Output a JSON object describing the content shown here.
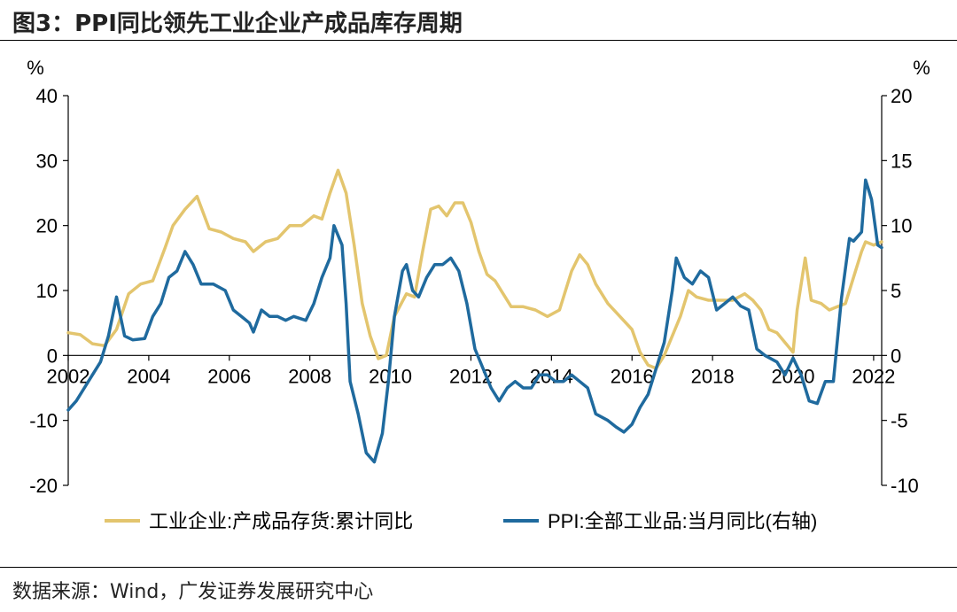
{
  "figure": {
    "title": "图3：PPI同比领先工业企业产成品库存周期",
    "source": "数据来源：Wind，广发证券发展研究中心"
  },
  "colors": {
    "left_series": "#e3c56e",
    "right_series": "#1f6a9e",
    "axis": "#000000"
  },
  "chart_data": {
    "type": "line",
    "title": "PPI同比领先工业企业产成品库存周期",
    "x_ticks": [
      "2002",
      "2004",
      "2006",
      "2008",
      "2010",
      "2012",
      "2014",
      "2016",
      "2018",
      "2020",
      "2022"
    ],
    "xlim": [
      2002.0,
      2022.2
    ],
    "left_axis": {
      "unit": "%",
      "ylim": [
        -20,
        40
      ],
      "ticks": [
        "-20",
        "-10",
        "0",
        "10",
        "20",
        "30",
        "40"
      ]
    },
    "right_axis": {
      "unit": "%",
      "ylim": [
        -10,
        20
      ],
      "ticks": [
        "-10",
        "-5",
        "0",
        "5",
        "10",
        "15",
        "20"
      ]
    },
    "series": [
      {
        "name": "工业企业:产成品存货:累计同比",
        "axis": "left",
        "color": "#e3c56e",
        "points": [
          [
            2002.0,
            3.5
          ],
          [
            2002.3,
            3.2
          ],
          [
            2002.6,
            1.8
          ],
          [
            2002.9,
            1.5
          ],
          [
            2003.2,
            4
          ],
          [
            2003.5,
            9.5
          ],
          [
            2003.8,
            11
          ],
          [
            2004.1,
            11.5
          ],
          [
            2004.4,
            16.5
          ],
          [
            2004.6,
            20
          ],
          [
            2004.9,
            22.5
          ],
          [
            2005.2,
            24.5
          ],
          [
            2005.5,
            19.5
          ],
          [
            2005.8,
            19
          ],
          [
            2006.1,
            18
          ],
          [
            2006.4,
            17.5
          ],
          [
            2006.6,
            16
          ],
          [
            2006.9,
            17.5
          ],
          [
            2007.2,
            18
          ],
          [
            2007.5,
            20
          ],
          [
            2007.8,
            20
          ],
          [
            2008.1,
            21.5
          ],
          [
            2008.3,
            21
          ],
          [
            2008.5,
            25
          ],
          [
            2008.7,
            28.5
          ],
          [
            2008.9,
            25
          ],
          [
            2009.1,
            17
          ],
          [
            2009.3,
            8
          ],
          [
            2009.5,
            3
          ],
          [
            2009.7,
            -0.5
          ],
          [
            2009.9,
            0
          ],
          [
            2010.1,
            6
          ],
          [
            2010.4,
            9.5
          ],
          [
            2010.6,
            9
          ],
          [
            2010.8,
            16
          ],
          [
            2011.0,
            22.5
          ],
          [
            2011.2,
            23
          ],
          [
            2011.4,
            21.5
          ],
          [
            2011.6,
            23.5
          ],
          [
            2011.8,
            23.5
          ],
          [
            2012.0,
            20.5
          ],
          [
            2012.2,
            16
          ],
          [
            2012.4,
            12.5
          ],
          [
            2012.6,
            11.5
          ],
          [
            2012.8,
            9.5
          ],
          [
            2013.0,
            7.5
          ],
          [
            2013.3,
            7.5
          ],
          [
            2013.6,
            7
          ],
          [
            2013.9,
            6
          ],
          [
            2014.2,
            7
          ],
          [
            2014.5,
            13
          ],
          [
            2014.7,
            15.5
          ],
          [
            2014.9,
            14
          ],
          [
            2015.1,
            11
          ],
          [
            2015.4,
            8
          ],
          [
            2015.7,
            6
          ],
          [
            2016.0,
            4
          ],
          [
            2016.2,
            0.5
          ],
          [
            2016.4,
            -1.5
          ],
          [
            2016.6,
            -2
          ],
          [
            2016.8,
            0
          ],
          [
            2017.0,
            3
          ],
          [
            2017.2,
            6
          ],
          [
            2017.4,
            10
          ],
          [
            2017.6,
            9
          ],
          [
            2017.9,
            8.5
          ],
          [
            2018.2,
            8.5
          ],
          [
            2018.5,
            8.5
          ],
          [
            2018.8,
            9.5
          ],
          [
            2019.0,
            8.5
          ],
          [
            2019.2,
            7
          ],
          [
            2019.4,
            4
          ],
          [
            2019.6,
            3.5
          ],
          [
            2019.8,
            2
          ],
          [
            2020.0,
            0.5
          ],
          [
            2020.1,
            7
          ],
          [
            2020.3,
            15
          ],
          [
            2020.45,
            8.5
          ],
          [
            2020.7,
            8
          ],
          [
            2020.9,
            7
          ],
          [
            2021.1,
            7.5
          ],
          [
            2021.3,
            8
          ],
          [
            2021.5,
            12
          ],
          [
            2021.7,
            16
          ],
          [
            2021.8,
            17.5
          ],
          [
            2022.0,
            17
          ],
          [
            2022.2,
            17.5
          ]
        ]
      },
      {
        "name": "PPI:全部工业品:当月同比(右轴)",
        "axis": "right",
        "color": "#1f6a9e",
        "points": [
          [
            2002.0,
            -4.2
          ],
          [
            2002.2,
            -3.5
          ],
          [
            2002.4,
            -2.5
          ],
          [
            2002.6,
            -1.5
          ],
          [
            2002.8,
            -0.5
          ],
          [
            2003.0,
            1.5
          ],
          [
            2003.2,
            4.5
          ],
          [
            2003.4,
            1.5
          ],
          [
            2003.6,
            1.2
          ],
          [
            2003.9,
            1.3
          ],
          [
            2004.1,
            3
          ],
          [
            2004.3,
            4
          ],
          [
            2004.5,
            6
          ],
          [
            2004.7,
            6.5
          ],
          [
            2004.9,
            8
          ],
          [
            2005.1,
            7
          ],
          [
            2005.3,
            5.5
          ],
          [
            2005.6,
            5.5
          ],
          [
            2005.9,
            5
          ],
          [
            2006.1,
            3.5
          ],
          [
            2006.3,
            3
          ],
          [
            2006.5,
            2.5
          ],
          [
            2006.6,
            1.8
          ],
          [
            2006.8,
            3.5
          ],
          [
            2007.0,
            3
          ],
          [
            2007.2,
            3
          ],
          [
            2007.4,
            2.7
          ],
          [
            2007.6,
            3
          ],
          [
            2007.9,
            2.7
          ],
          [
            2008.1,
            4
          ],
          [
            2008.3,
            6
          ],
          [
            2008.5,
            7.5
          ],
          [
            2008.6,
            10
          ],
          [
            2008.8,
            8.5
          ],
          [
            2008.9,
            4
          ],
          [
            2009.0,
            -2
          ],
          [
            2009.2,
            -4.5
          ],
          [
            2009.4,
            -7.5
          ],
          [
            2009.6,
            -8.2
          ],
          [
            2009.8,
            -6
          ],
          [
            2009.95,
            -2
          ],
          [
            2010.1,
            3
          ],
          [
            2010.3,
            6.5
          ],
          [
            2010.4,
            7
          ],
          [
            2010.55,
            5
          ],
          [
            2010.7,
            4.5
          ],
          [
            2010.9,
            6
          ],
          [
            2011.1,
            7
          ],
          [
            2011.3,
            7
          ],
          [
            2011.5,
            7.5
          ],
          [
            2011.7,
            6.5
          ],
          [
            2011.9,
            4
          ],
          [
            2012.1,
            0.5
          ],
          [
            2012.3,
            -1
          ],
          [
            2012.5,
            -2.5
          ],
          [
            2012.7,
            -3.5
          ],
          [
            2012.9,
            -2.5
          ],
          [
            2013.1,
            -2
          ],
          [
            2013.3,
            -2.5
          ],
          [
            2013.5,
            -2.5
          ],
          [
            2013.7,
            -1.5
          ],
          [
            2013.9,
            -1.5
          ],
          [
            2014.1,
            -2
          ],
          [
            2014.3,
            -2
          ],
          [
            2014.5,
            -1.5
          ],
          [
            2014.7,
            -2
          ],
          [
            2014.9,
            -2.5
          ],
          [
            2015.1,
            -4.5
          ],
          [
            2015.4,
            -5
          ],
          [
            2015.6,
            -5.5
          ],
          [
            2015.8,
            -5.9
          ],
          [
            2016.0,
            -5.3
          ],
          [
            2016.2,
            -4
          ],
          [
            2016.4,
            -3
          ],
          [
            2016.6,
            -1
          ],
          [
            2016.8,
            1
          ],
          [
            2017.0,
            5
          ],
          [
            2017.1,
            7.5
          ],
          [
            2017.3,
            6
          ],
          [
            2017.5,
            5.5
          ],
          [
            2017.7,
            6.5
          ],
          [
            2017.9,
            6
          ],
          [
            2018.1,
            3.5
          ],
          [
            2018.3,
            4
          ],
          [
            2018.5,
            4.5
          ],
          [
            2018.7,
            3.8
          ],
          [
            2018.9,
            3.5
          ],
          [
            2019.1,
            0.5
          ],
          [
            2019.3,
            0
          ],
          [
            2019.6,
            -0.5
          ],
          [
            2019.8,
            -1.5
          ],
          [
            2020.0,
            -0.2
          ],
          [
            2020.2,
            -1.5
          ],
          [
            2020.4,
            -3.5
          ],
          [
            2020.6,
            -3.7
          ],
          [
            2020.8,
            -2
          ],
          [
            2021.0,
            -2
          ],
          [
            2021.2,
            4.4
          ],
          [
            2021.4,
            9
          ],
          [
            2021.5,
            8.8
          ],
          [
            2021.7,
            9.5
          ],
          [
            2021.8,
            13.5
          ],
          [
            2021.95,
            12
          ],
          [
            2022.1,
            8.5
          ],
          [
            2022.2,
            8.3
          ]
        ]
      }
    ],
    "legend_position": "bottom"
  }
}
